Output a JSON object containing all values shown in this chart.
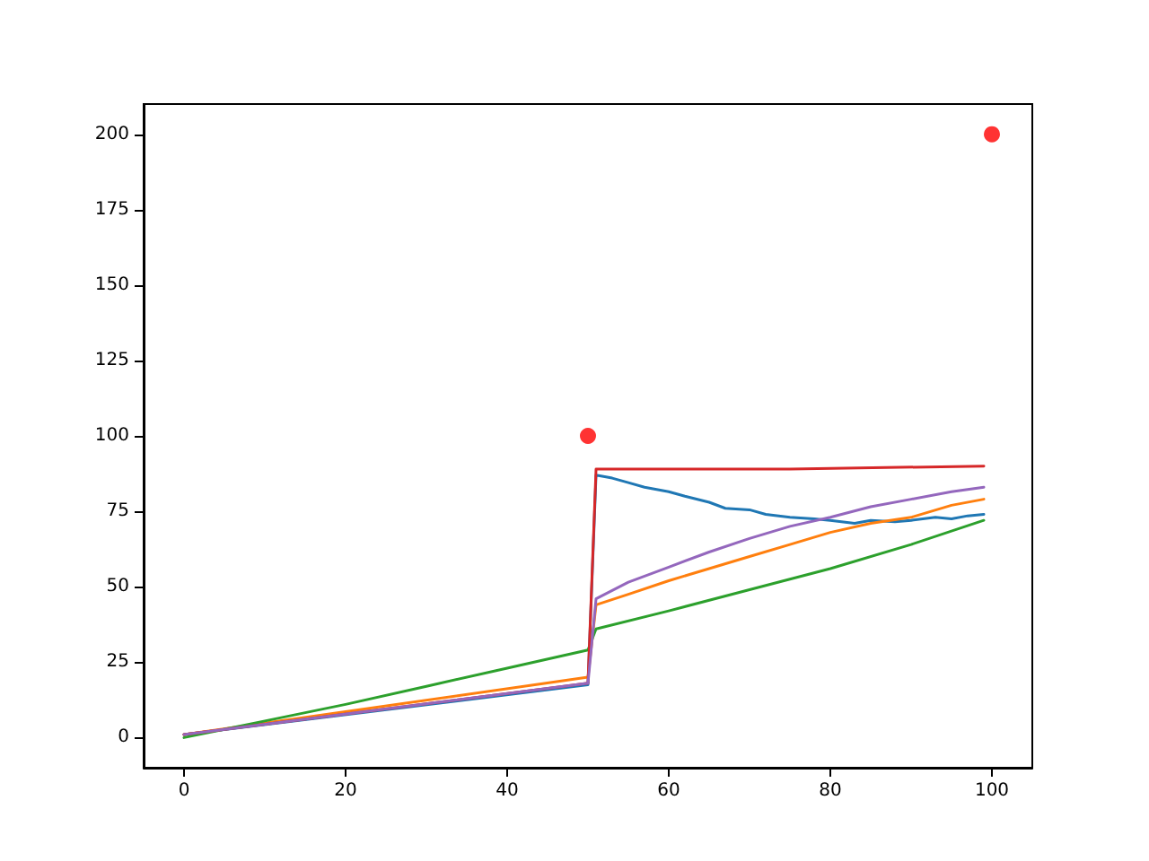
{
  "chart_data": {
    "type": "line",
    "xlim": [
      -5,
      105
    ],
    "ylim": [
      -10,
      210
    ],
    "xticks": [
      0,
      20,
      40,
      60,
      80,
      100
    ],
    "yticks": [
      0,
      25,
      50,
      75,
      100,
      125,
      150,
      175,
      200
    ],
    "marker": "none",
    "series": [
      {
        "color": "#1f77b4",
        "x": [
          0,
          50,
          51,
          53,
          55,
          57,
          60,
          62,
          65,
          67,
          70,
          72,
          75,
          78,
          80,
          83,
          85,
          88,
          90,
          93,
          95,
          97,
          99
        ],
        "values": [
          1,
          17.5,
          87,
          86,
          84.5,
          83,
          81.5,
          80,
          78,
          76,
          75.5,
          74,
          73,
          72.5,
          72,
          71,
          72,
          71.5,
          72,
          73,
          72.5,
          73.5,
          74
        ]
      },
      {
        "color": "#ff7f0e",
        "x": [
          0,
          50,
          51,
          55,
          60,
          65,
          70,
          75,
          80,
          85,
          90,
          95,
          99
        ],
        "values": [
          1,
          20,
          44,
          47.5,
          52,
          56,
          60,
          64,
          68,
          71,
          73,
          77,
          79
        ]
      },
      {
        "color": "#2ca02c",
        "x": [
          0,
          10,
          20,
          30,
          40,
          50,
          51,
          60,
          70,
          80,
          90,
          99
        ],
        "values": [
          0,
          5.5,
          11,
          17,
          23,
          29,
          36,
          42,
          49,
          56,
          64,
          72
        ]
      },
      {
        "color": "#d62728",
        "x": [
          0,
          50,
          51,
          75,
          99
        ],
        "values": [
          1,
          18,
          89,
          89,
          90
        ]
      },
      {
        "color": "#9467bd",
        "x": [
          0,
          50,
          51,
          55,
          60,
          65,
          70,
          75,
          80,
          85,
          90,
          95,
          99
        ],
        "values": [
          1,
          18,
          46,
          51.5,
          56.5,
          61.5,
          66,
          70,
          73,
          76.5,
          79,
          81.5,
          83
        ]
      },
      {
        "type": "scatter",
        "marker": "circle",
        "color": "#ff0000",
        "x": [
          50,
          100
        ],
        "values": [
          100,
          200
        ]
      }
    ]
  }
}
